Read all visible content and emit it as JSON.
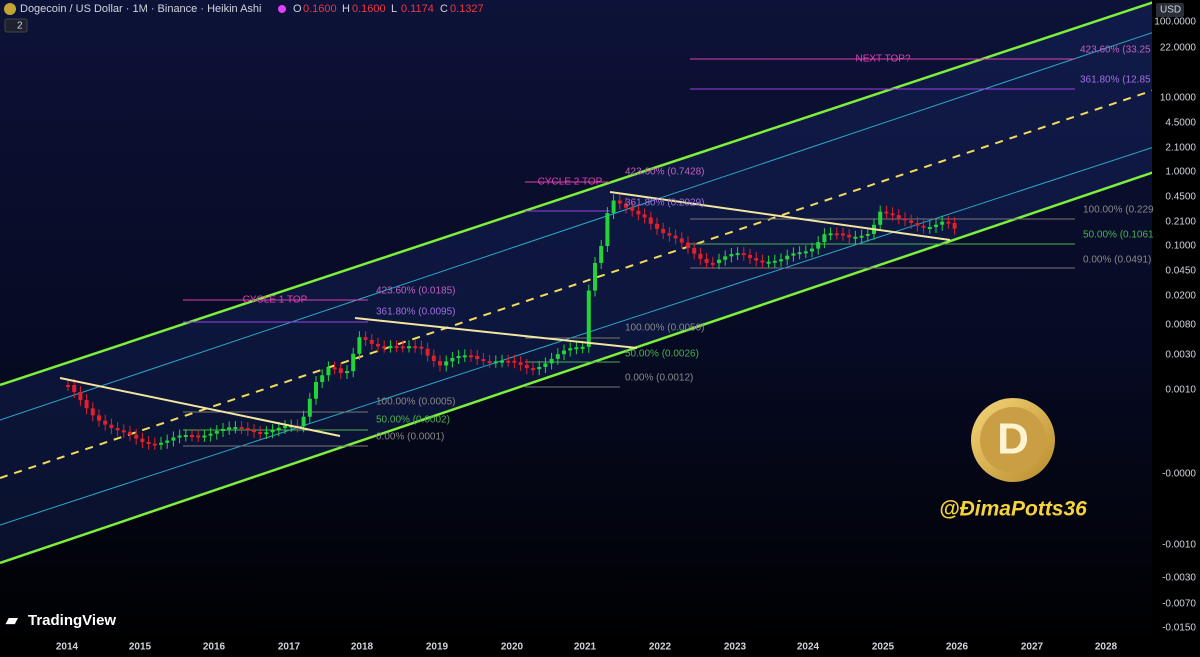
{
  "header": {
    "title": "Dogecoin / US Dollar · 1M · Binance · Heikin Ashi",
    "ohlc": [
      {
        "k": "O",
        "v": "0.1600"
      },
      {
        "k": "H",
        "v": "0.1600"
      },
      {
        "k": "L",
        "v": "0.1174"
      },
      {
        "k": "C",
        "v": "0.1327"
      }
    ],
    "badge": "2",
    "currency": "USD"
  },
  "price_axis": [
    "100.0000",
    "22.0000",
    "10.0000",
    "4.5000",
    "2.1000",
    "1.0000",
    "0.4500",
    "0.2100",
    "0.1000",
    "0.0450",
    "0.0200",
    "0.0080",
    "0.0030",
    "0.0010",
    "-0.0000",
    "-0.0010",
    "-0.0030",
    "-0.0070",
    "-0.0150"
  ],
  "time_axis": [
    "2014",
    "2015",
    "2016",
    "2017",
    "2018",
    "2019",
    "2020",
    "2021",
    "2022",
    "2023",
    "2024",
    "2025",
    "2026",
    "2027",
    "2028"
  ],
  "annotations": [
    "NEXT TOP?",
    "423.60% (33.25",
    "361.80% (12.85",
    "CYCLE 2 TOP",
    "423.60% (0.7428)",
    "361.80% (0.2929)",
    "100.00% (0.229",
    "50.00% (0.1061",
    "0.00% (0.0491)",
    "CYCLE 1 TOP",
    "423.60% (0.0185)",
    "361.80% (0.0095)",
    "100.00% (0.0050)",
    "50.00% (0.0026)",
    "0.00% (0.0012)",
    "100.00% (0.0005)",
    "50.00% (0.0002)",
    "0.00% (0.0001)"
  ],
  "watermark": "@ĐimaPotts36",
  "brand": "TradingView"
}
